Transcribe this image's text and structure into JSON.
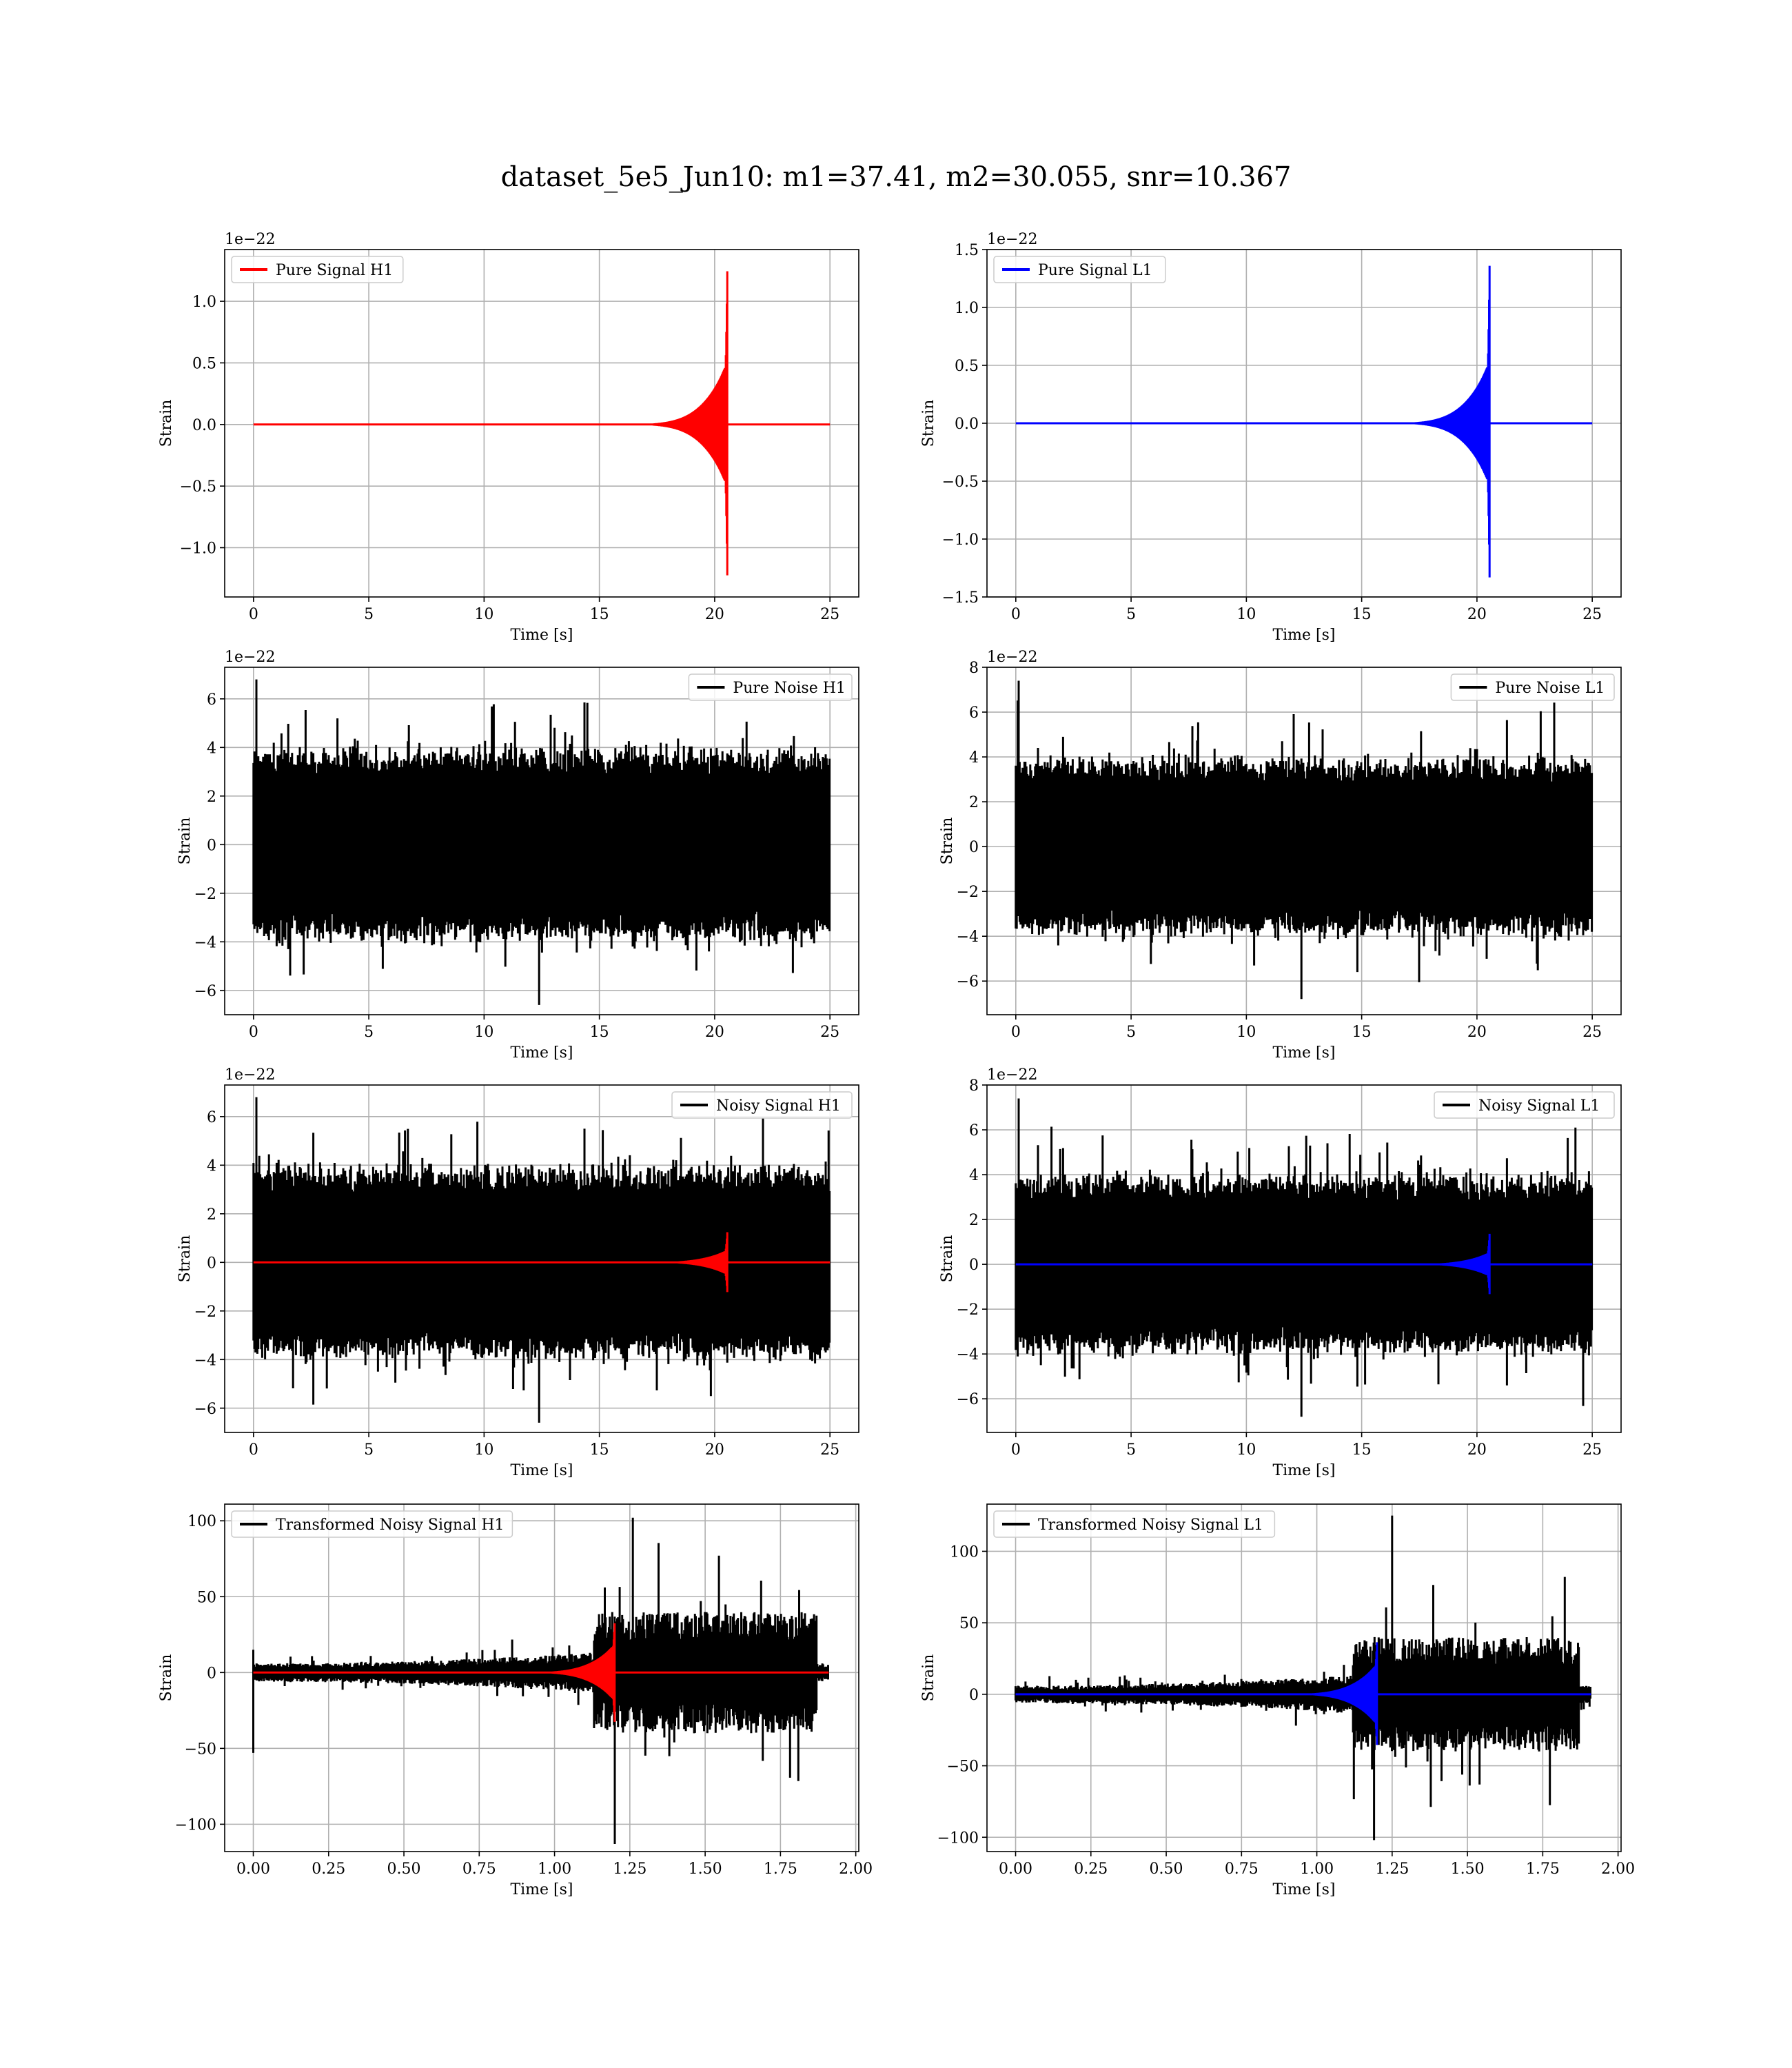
{
  "figure": {
    "title": "dataset_5e5_Jun10: m1=37.41, m2=30.055, snr=10.367"
  },
  "chart_data": [
    {
      "id": "pure-signal-h1",
      "type": "line",
      "title": "",
      "xlabel": "Time [s]",
      "ylabel": "Strain",
      "offset_text": "1e−22",
      "xlim": [
        -1.25,
        26.25
      ],
      "ylim": [
        -1.4,
        1.42
      ],
      "xticks": [
        0,
        5,
        10,
        15,
        20,
        25
      ],
      "xtick_labels": [
        "0",
        "5",
        "10",
        "15",
        "20",
        "25"
      ],
      "yticks": [
        -1.0,
        -0.5,
        0.0,
        0.5,
        1.0
      ],
      "ytick_labels": [
        "−1.0",
        "−0.5",
        "0.0",
        "0.5",
        "1.0"
      ],
      "grid": true,
      "legend_position": "top-left",
      "series": [
        {
          "name": "Pure Signal H1",
          "color": "#ff0000",
          "kind": "chirp",
          "t_start": 0,
          "t_end": 25,
          "t_merge": 20.55,
          "peak_pos": 1.28,
          "peak_neg": -1.26,
          "plateau": 0.38,
          "noise_amp": 0,
          "legend": true
        }
      ]
    },
    {
      "id": "pure-signal-l1",
      "type": "line",
      "title": "",
      "xlabel": "Time [s]",
      "ylabel": "Strain",
      "offset_text": "1e−22",
      "xlim": [
        -1.25,
        26.25
      ],
      "ylim": [
        -1.5,
        1.5
      ],
      "xticks": [
        0,
        5,
        10,
        15,
        20,
        25
      ],
      "xtick_labels": [
        "0",
        "5",
        "10",
        "15",
        "20",
        "25"
      ],
      "yticks": [
        -1.5,
        -1.0,
        -0.5,
        0.0,
        0.5,
        1.0,
        1.5
      ],
      "ytick_labels": [
        "−1.5",
        "−1.0",
        "−0.5",
        "0.0",
        "0.5",
        "1.0",
        "1.5"
      ],
      "grid": true,
      "legend_position": "top-left",
      "series": [
        {
          "name": "Pure Signal L1",
          "color": "#0000ff",
          "kind": "chirp",
          "t_start": 0,
          "t_end": 25,
          "t_merge": 20.55,
          "peak_pos": 1.4,
          "peak_neg": -1.37,
          "plateau": 0.4,
          "noise_amp": 0,
          "legend": true
        }
      ]
    },
    {
      "id": "pure-noise-h1",
      "type": "line",
      "title": "",
      "xlabel": "Time [s]",
      "ylabel": "Strain",
      "offset_text": "1e−22",
      "xlim": [
        -1.25,
        26.25
      ],
      "ylim": [
        -7.0,
        7.3
      ],
      "xticks": [
        0,
        5,
        10,
        15,
        20,
        25
      ],
      "xtick_labels": [
        "0",
        "5",
        "10",
        "15",
        "20",
        "25"
      ],
      "yticks": [
        -6,
        -4,
        -2,
        0,
        2,
        4,
        6
      ],
      "ytick_labels": [
        "−6",
        "−4",
        "−2",
        "0",
        "2",
        "4",
        "6"
      ],
      "grid": true,
      "legend_position": "top-right",
      "series": [
        {
          "name": "Pure Noise H1",
          "color": "#000000",
          "kind": "noise",
          "t_start": 0,
          "t_end": 25,
          "band": 3.6,
          "spike_max": 6.8,
          "spike_min": -6.6,
          "legend": true
        }
      ]
    },
    {
      "id": "pure-noise-l1",
      "type": "line",
      "title": "",
      "xlabel": "Time [s]",
      "ylabel": "Strain",
      "offset_text": "1e−22",
      "xlim": [
        -1.25,
        26.25
      ],
      "ylim": [
        -7.5,
        8.0
      ],
      "xticks": [
        0,
        5,
        10,
        15,
        20,
        25
      ],
      "xtick_labels": [
        "0",
        "5",
        "10",
        "15",
        "20",
        "25"
      ],
      "yticks": [
        -6,
        -4,
        -2,
        0,
        2,
        4,
        6,
        8
      ],
      "ytick_labels": [
        "−6",
        "−4",
        "−2",
        "0",
        "2",
        "4",
        "6",
        "8"
      ],
      "grid": true,
      "legend_position": "top-right",
      "series": [
        {
          "name": "Pure Noise L1",
          "color": "#000000",
          "kind": "noise",
          "t_start": 0,
          "t_end": 25,
          "band": 3.6,
          "spike_max": 7.4,
          "spike_min": -6.8,
          "legend": true
        }
      ]
    },
    {
      "id": "noisy-signal-h1",
      "type": "line",
      "title": "",
      "xlabel": "Time [s]",
      "ylabel": "Strain",
      "offset_text": "1e−22",
      "xlim": [
        -1.25,
        26.25
      ],
      "ylim": [
        -7.0,
        7.3
      ],
      "xticks": [
        0,
        5,
        10,
        15,
        20,
        25
      ],
      "xtick_labels": [
        "0",
        "5",
        "10",
        "15",
        "20",
        "25"
      ],
      "yticks": [
        -6,
        -4,
        -2,
        0,
        2,
        4,
        6
      ],
      "ytick_labels": [
        "−6",
        "−4",
        "−2",
        "0",
        "2",
        "4",
        "6"
      ],
      "grid": true,
      "legend_position": "top-right",
      "series": [
        {
          "name": "Noisy Signal H1",
          "color": "#000000",
          "kind": "noise",
          "t_start": 0,
          "t_end": 25,
          "band": 3.6,
          "spike_max": 6.8,
          "spike_min": -6.6,
          "legend": true
        },
        {
          "name": "",
          "color": "#ff0000",
          "kind": "chirp",
          "t_start": 0,
          "t_end": 25,
          "t_merge": 20.55,
          "peak_pos": 1.28,
          "peak_neg": -1.26,
          "plateau": 0.38,
          "noise_amp": 0,
          "legend": false
        }
      ]
    },
    {
      "id": "noisy-signal-l1",
      "type": "line",
      "title": "",
      "xlabel": "Time [s]",
      "ylabel": "Strain",
      "offset_text": "1e−22",
      "xlim": [
        -1.25,
        26.25
      ],
      "ylim": [
        -7.5,
        8.0
      ],
      "xticks": [
        0,
        5,
        10,
        15,
        20,
        25
      ],
      "xtick_labels": [
        "0",
        "5",
        "10",
        "15",
        "20",
        "25"
      ],
      "yticks": [
        -6,
        -4,
        -2,
        0,
        2,
        4,
        6,
        8
      ],
      "ytick_labels": [
        "−6",
        "−4",
        "−2",
        "0",
        "2",
        "4",
        "6",
        "8"
      ],
      "grid": true,
      "legend_position": "top-right",
      "series": [
        {
          "name": "Noisy Signal L1",
          "color": "#000000",
          "kind": "noise",
          "t_start": 0,
          "t_end": 25,
          "band": 3.6,
          "spike_max": 7.4,
          "spike_min": -6.8,
          "legend": true
        },
        {
          "name": "",
          "color": "#0000ff",
          "kind": "chirp",
          "t_start": 0,
          "t_end": 25,
          "t_merge": 20.55,
          "peak_pos": 1.4,
          "peak_neg": -1.37,
          "plateau": 0.4,
          "noise_amp": 0,
          "legend": false
        }
      ]
    },
    {
      "id": "transformed-noisy-signal-h1",
      "type": "line",
      "title": "",
      "xlabel": "Time [s]",
      "ylabel": "Strain",
      "offset_text": "",
      "xlim": [
        -0.095,
        2.01
      ],
      "ylim": [
        -118,
        111
      ],
      "xticks": [
        0.0,
        0.25,
        0.5,
        0.75,
        1.0,
        1.25,
        1.5,
        1.75,
        2.0
      ],
      "xtick_labels": [
        "0.00",
        "0.25",
        "0.50",
        "0.75",
        "1.00",
        "1.25",
        "1.50",
        "1.75",
        "2.00"
      ],
      "yticks": [
        -100,
        -50,
        0,
        50,
        100
      ],
      "ytick_labels": [
        "−100",
        "−50",
        "0",
        "50",
        "100"
      ],
      "grid": true,
      "legend_position": "top-left",
      "series": [
        {
          "name": "Transformed Noisy Signal H1",
          "color": "#000000",
          "kind": "whitened",
          "t_start": 0,
          "t_end": 1.91,
          "t_rise": 1.13,
          "t_stop": 1.87,
          "early_amp": 6,
          "late_amp": 40,
          "spike_max": 102,
          "spike_min": -113,
          "start_spike": -53,
          "legend": true
        },
        {
          "name": "",
          "color": "#ff0000",
          "kind": "chirp",
          "t_start": 0,
          "t_end": 1.91,
          "t_merge": 1.2,
          "peak_pos": 34,
          "peak_neg": -34,
          "plateau": 14,
          "noise_amp": 0,
          "legend": false
        }
      ]
    },
    {
      "id": "transformed-noisy-signal-l1",
      "type": "line",
      "title": "",
      "xlabel": "Time [s]",
      "ylabel": "Strain",
      "offset_text": "",
      "xlim": [
        -0.095,
        2.01
      ],
      "ylim": [
        -110,
        133
      ],
      "xticks": [
        0.0,
        0.25,
        0.5,
        0.75,
        1.0,
        1.25,
        1.5,
        1.75,
        2.0
      ],
      "xtick_labels": [
        "0.00",
        "0.25",
        "0.50",
        "0.75",
        "1.00",
        "1.25",
        "1.50",
        "1.75",
        "2.00"
      ],
      "yticks": [
        -100,
        -50,
        0,
        50,
        100
      ],
      "ytick_labels": [
        "−100",
        "−50",
        "0",
        "50",
        "100"
      ],
      "grid": true,
      "legend_position": "top-left",
      "series": [
        {
          "name": "Transformed Noisy Signal L1",
          "color": "#000000",
          "kind": "whitened",
          "t_start": 0,
          "t_end": 1.91,
          "t_rise": 1.12,
          "t_stop": 1.87,
          "early_amp": 6,
          "late_amp": 40,
          "spike_max": 125,
          "spike_min": -102,
          "start_spike": 0,
          "legend": true
        },
        {
          "name": "",
          "color": "#0000ff",
          "kind": "chirp",
          "t_start": 0,
          "t_end": 1.91,
          "t_merge": 1.2,
          "peak_pos": 38,
          "peak_neg": -37,
          "plateau": 16,
          "noise_amp": 0,
          "legend": false
        }
      ]
    }
  ]
}
